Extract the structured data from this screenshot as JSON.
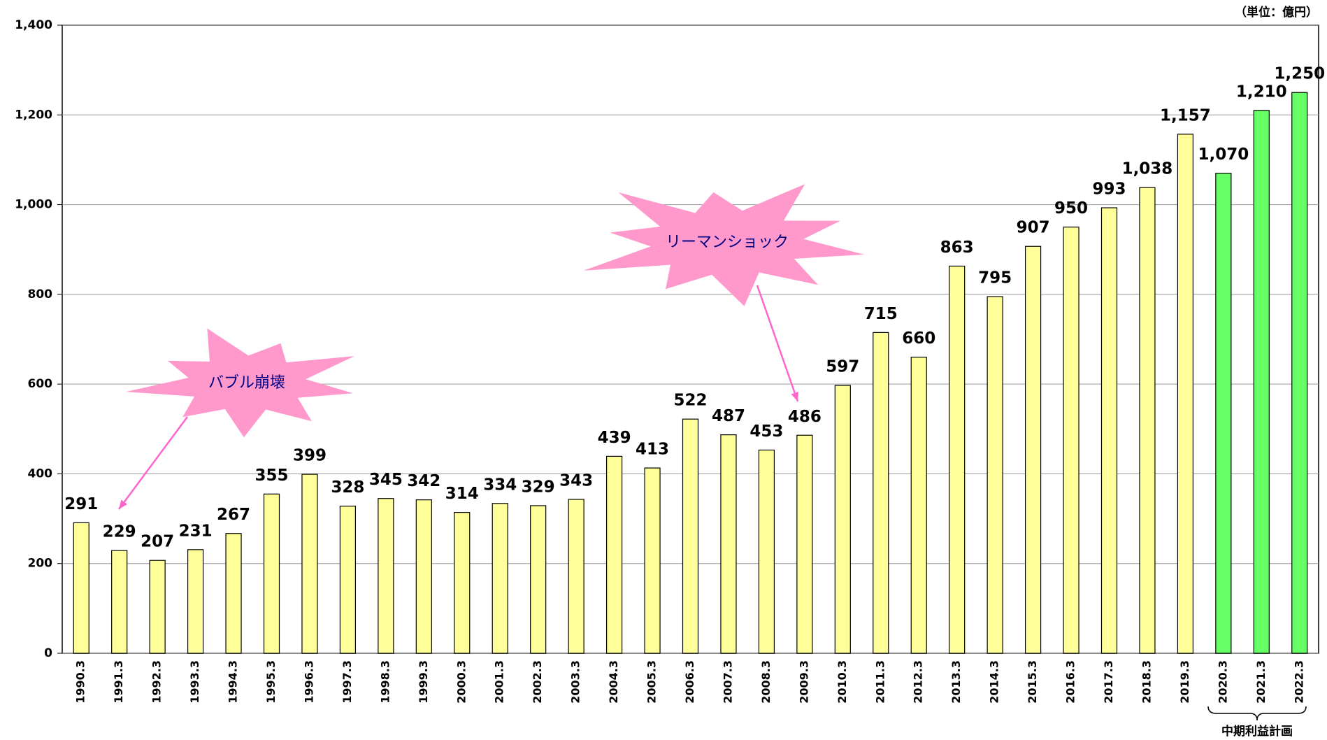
{
  "chart_data": {
    "type": "bar",
    "unit_label": "（単位：億円）",
    "categories": [
      "1990.3",
      "1991.3",
      "1992.3",
      "1993.3",
      "1994.3",
      "1995.3",
      "1996.3",
      "1997.3",
      "1998.3",
      "1999.3",
      "2000.3",
      "2001.3",
      "2002.3",
      "2003.3",
      "2004.3",
      "2005.3",
      "2006.3",
      "2007.3",
      "2008.3",
      "2009.3",
      "2010.3",
      "2011.3",
      "2012.3",
      "2013.3",
      "2014.3",
      "2015.3",
      "2016.3",
      "2017.3",
      "2018.3",
      "2019.3",
      "2020.3",
      "2021.3",
      "2022.3"
    ],
    "values": [
      291,
      229,
      207,
      231,
      267,
      355,
      399,
      328,
      345,
      342,
      314,
      334,
      329,
      343,
      439,
      413,
      522,
      487,
      453,
      486,
      597,
      715,
      660,
      863,
      795,
      907,
      950,
      993,
      1038,
      1157,
      1070,
      1210,
      1250
    ],
    "value_labels": [
      "291",
      "229",
      "207",
      "231",
      "267",
      "355",
      "399",
      "328",
      "345",
      "342",
      "314",
      "334",
      "329",
      "343",
      "439",
      "413",
      "522",
      "487",
      "453",
      "486",
      "597",
      "715",
      "660",
      "863",
      "795",
      "907",
      "950",
      "993",
      "1,038",
      "1,157",
      "1,070",
      "1,210",
      "1,250"
    ],
    "colors": [
      "#ffff99",
      "#ffff99",
      "#ffff99",
      "#ffff99",
      "#ffff99",
      "#ffff99",
      "#ffff99",
      "#ffff99",
      "#ffff99",
      "#ffff99",
      "#ffff99",
      "#ffff99",
      "#ffff99",
      "#ffff99",
      "#ffff99",
      "#ffff99",
      "#ffff99",
      "#ffff99",
      "#ffff99",
      "#ffff99",
      "#ffff99",
      "#ffff99",
      "#ffff99",
      "#ffff99",
      "#ffff99",
      "#ffff99",
      "#ffff99",
      "#ffff99",
      "#ffff99",
      "#ffff99",
      "#66ff66",
      "#66ff66",
      "#66ff66"
    ],
    "ylim": [
      0,
      1400
    ],
    "yticks": [
      0,
      200,
      400,
      600,
      800,
      {
        "value": 1000,
        "label": "1,000"
      },
      {
        "value": 1200,
        "label": "1,200"
      },
      {
        "value": 1400,
        "label": "1,400"
      }
    ],
    "grid": true,
    "annotations": [
      "バブル崩壊",
      "リーマンショック"
    ],
    "bracket_label": "中期利益計画"
  }
}
